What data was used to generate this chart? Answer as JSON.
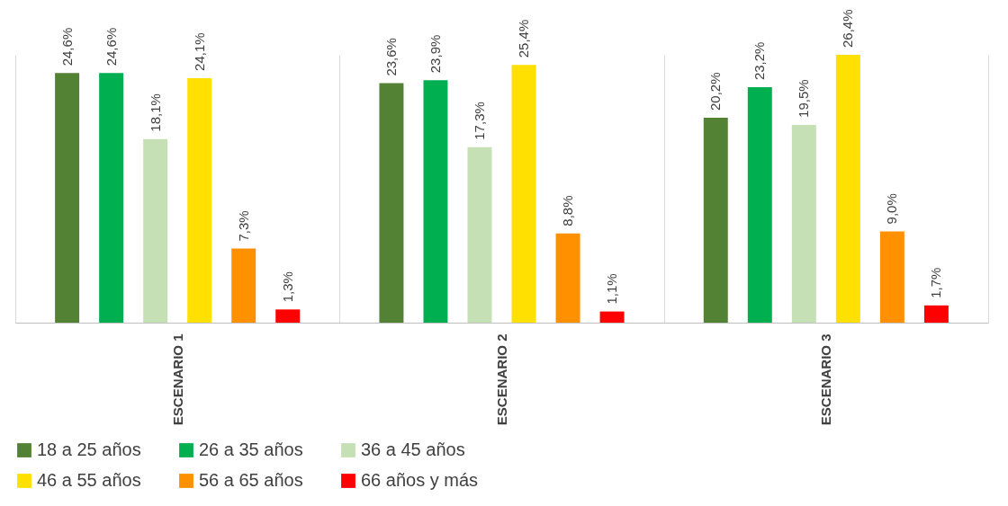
{
  "chart_data": {
    "type": "bar",
    "categories": [
      "ESCENARIO 1",
      "ESCENARIO 2",
      "ESCENARIO 3"
    ],
    "series": [
      {
        "name": "18 a 25 años",
        "color": "#548235",
        "values": [
          24.6,
          23.6,
          20.2
        ],
        "value_labels": [
          "24,6%",
          "23,6%",
          "20,2%"
        ]
      },
      {
        "name": "26 a 35 años",
        "color": "#00b050",
        "values": [
          24.6,
          23.9,
          23.2
        ],
        "value_labels": [
          "24,6%",
          "23,9%",
          "23,2%"
        ]
      },
      {
        "name": "36 a 45 años",
        "color": "#c5e0b4",
        "values": [
          18.1,
          17.3,
          19.5
        ],
        "value_labels": [
          "18,1%",
          "17,3%",
          "19,5%"
        ]
      },
      {
        "name": "46 a 55 años",
        "color": "#ffe000",
        "values": [
          24.1,
          25.4,
          26.4
        ],
        "value_labels": [
          "24,1%",
          "25,4%",
          "26,4%"
        ]
      },
      {
        "name": "56 a 65 años",
        "color": "#ff9000",
        "values": [
          7.3,
          8.8,
          9.0
        ],
        "value_labels": [
          "7,3%",
          "8,8%",
          "9,0%"
        ]
      },
      {
        "name": "66 años y más",
        "color": "#ff0000",
        "values": [
          1.3,
          1.1,
          1.7
        ],
        "value_labels": [
          "1,3%",
          "1,1%",
          "1,7%"
        ]
      }
    ],
    "grid": "x",
    "legend": "bottom",
    "tick_labels": "x"
  }
}
